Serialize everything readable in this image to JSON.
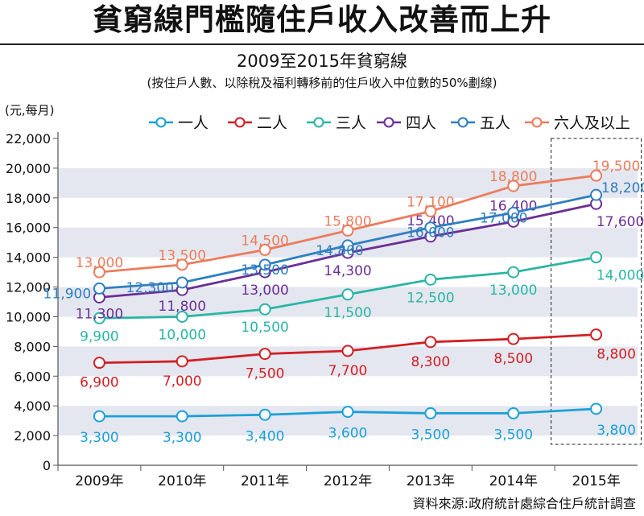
{
  "headline": "貧窮線門檻隨住戶收入改善而上升",
  "chart_data": {
    "type": "line",
    "title": "2009至2015年貧窮線",
    "subtitle": "(按住戶人數、以除稅及福利轉移前的住戶收入中位數的50%劃線)",
    "ylabel": "(元,每月)",
    "xlabel": "",
    "categories": [
      "2009年",
      "2010年",
      "2011年",
      "2012年",
      "2013年",
      "2014年",
      "2015年"
    ],
    "ylim": [
      0,
      22000
    ],
    "yticks": [
      "0",
      "2,000",
      "4,000",
      "6,000",
      "8,000",
      "10,000",
      "12,000",
      "14,000",
      "16,000",
      "18,000",
      "20,000",
      "22,000"
    ],
    "grid": "alternating horizontal bands",
    "legend_position": "top-right",
    "highlight": "2015年 (dashed box)",
    "series": [
      {
        "name": "一人",
        "color": "#1ba0d8",
        "values": [
          3300,
          3300,
          3400,
          3600,
          3500,
          3500,
          3800
        ],
        "labels": [
          "3,300",
          "3,300",
          "3,400",
          "3,600",
          "3,500",
          "3,500",
          "3,800"
        ]
      },
      {
        "name": "二人",
        "color": "#d21f24",
        "values": [
          6900,
          7000,
          7500,
          7700,
          8300,
          8500,
          8800
        ],
        "labels": [
          "6,900",
          "7,000",
          "7,500",
          "7,700",
          "8,300",
          "8,500",
          "8,800"
        ]
      },
      {
        "name": "三人",
        "color": "#2ab5a5",
        "values": [
          9900,
          10000,
          10500,
          11500,
          12500,
          13000,
          14000
        ],
        "labels": [
          "9,900",
          "10,000",
          "10,500",
          "11,500",
          "12,500",
          "13,000",
          "14,000"
        ]
      },
      {
        "name": "四人",
        "color": "#6b2f96",
        "values": [
          11300,
          11800,
          13000,
          14300,
          15400,
          16400,
          17600
        ],
        "labels": [
          "11,300",
          "11,800",
          "13,000",
          "14,300",
          "15,400",
          "16,400",
          "17,600"
        ]
      },
      {
        "name": "五人",
        "color": "#2f7fc2",
        "values": [
          11900,
          12300,
          13500,
          14800,
          16000,
          17000,
          18200
        ],
        "labels": [
          "11,900",
          "12,300",
          "13,500",
          "14,800",
          "16,000",
          "17,000",
          "18,200"
        ]
      },
      {
        "name": "六人及以上",
        "color": "#ec7c5c",
        "values": [
          13000,
          13500,
          14500,
          15800,
          17100,
          18800,
          19500
        ],
        "labels": [
          "13,000",
          "13,500",
          "14,500",
          "15,800",
          "17,100",
          "18,800",
          "19,500"
        ]
      }
    ]
  },
  "footer": {
    "source": "資料來源:政府統計處綜合住戶統計調查"
  }
}
